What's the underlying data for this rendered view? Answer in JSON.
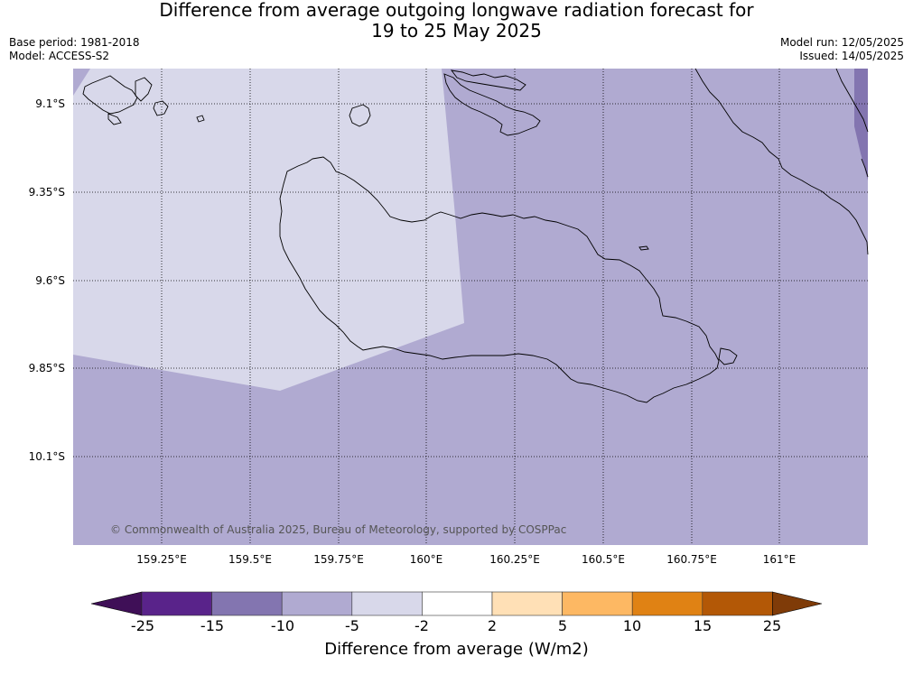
{
  "title": {
    "line1": "Difference from average outgoing longwave radiation forecast for",
    "line2": "19 to 25 May 2025"
  },
  "meta_left": {
    "base_period": "Base period: 1981-2018",
    "model": "Model: ACCESS-S2"
  },
  "meta_right": {
    "model_run": "Model run: 12/05/2025",
    "issued": "Issued: 14/05/2025"
  },
  "map": {
    "lat_labels": [
      "9.1°S",
      "9.35°S",
      "9.6°S",
      "9.85°S",
      "10.1°S"
    ],
    "lon_labels": [
      "159.25°E",
      "159.5°E",
      "159.75°E",
      "160°E",
      "160.25°E",
      "160.5°E",
      "160.75°E",
      "161°E"
    ],
    "copyright": "© Commonwealth of Australia 2025, Bureau of Meteorology, supported by COSPPac",
    "fill_colors": {
      "bin_-5_-2": "#d8d8ea",
      "bin_-10_-5": "#b0aad1",
      "bin_-15_-10": "#8375b0"
    }
  },
  "colorbar": {
    "tick_labels": [
      "-25",
      "-15",
      "-10",
      "-5",
      "-2",
      "2",
      "5",
      "10",
      "15",
      "25"
    ],
    "colors": [
      "#3f0f57",
      "#59238a",
      "#8375b0",
      "#b0aad1",
      "#d8d8ea",
      "#ffffff",
      "#ffe0b6",
      "#fdb863",
      "#e08214",
      "#b35806",
      "#7f3b08"
    ],
    "label": "Difference from average (W/m2)"
  }
}
